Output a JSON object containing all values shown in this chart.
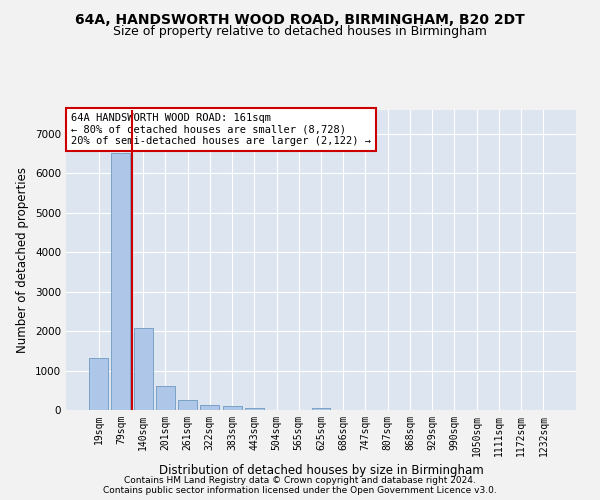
{
  "title1": "64A, HANDSWORTH WOOD ROAD, BIRMINGHAM, B20 2DT",
  "title2": "Size of property relative to detached houses in Birmingham",
  "xlabel": "Distribution of detached houses by size in Birmingham",
  "ylabel": "Number of detached properties",
  "footer1": "Contains HM Land Registry data © Crown copyright and database right 2024.",
  "footer2": "Contains public sector information licensed under the Open Government Licence v3.0.",
  "bin_labels": [
    "19sqm",
    "79sqm",
    "140sqm",
    "201sqm",
    "261sqm",
    "322sqm",
    "383sqm",
    "443sqm",
    "504sqm",
    "565sqm",
    "625sqm",
    "686sqm",
    "747sqm",
    "807sqm",
    "868sqm",
    "929sqm",
    "990sqm",
    "1050sqm",
    "1111sqm",
    "1172sqm",
    "1232sqm"
  ],
  "bar_values": [
    1310,
    6500,
    2080,
    620,
    250,
    130,
    90,
    60,
    0,
    0,
    60,
    0,
    0,
    0,
    0,
    0,
    0,
    0,
    0,
    0,
    0
  ],
  "bar_color": "#aec6e8",
  "bar_edge_color": "#5b8db8",
  "vline_color": "#cc0000",
  "annotation_box_text": "64A HANDSWORTH WOOD ROAD: 161sqm\n← 80% of detached houses are smaller (8,728)\n20% of semi-detached houses are larger (2,122) →",
  "annotation_box_color": "#cc0000",
  "annotation_box_bg": "#ffffff",
  "ylim": [
    0,
    7600
  ],
  "yticks": [
    0,
    1000,
    2000,
    3000,
    4000,
    5000,
    6000,
    7000
  ],
  "bg_color": "#dde6f0",
  "grid_color": "#ffffff",
  "fig_bg_color": "#f2f2f2",
  "title_fontsize": 10,
  "subtitle_fontsize": 9,
  "tick_fontsize": 7,
  "ylabel_fontsize": 8.5,
  "xlabel_fontsize": 8.5,
  "annotation_fontsize": 7.5,
  "footer_fontsize": 6.5
}
